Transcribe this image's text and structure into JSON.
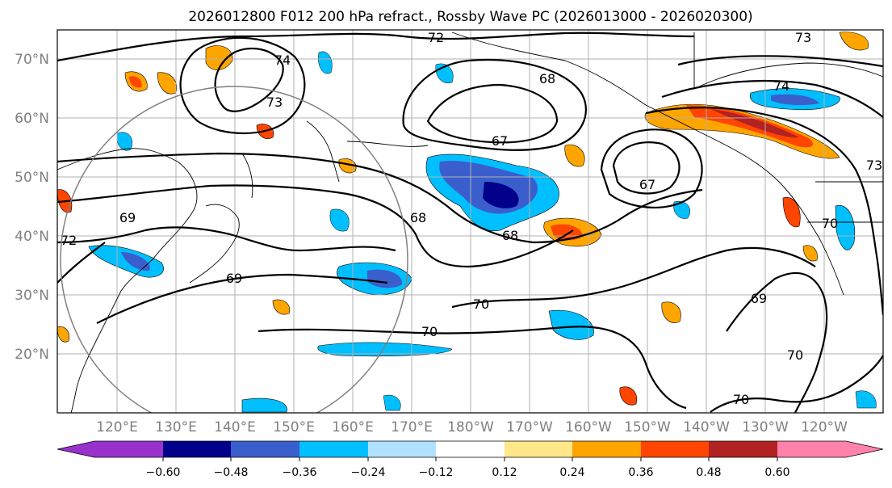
{
  "title": "2026012800 F012 200 hPa refract., Rossby Wave PC (2026013000 - 2026020300)",
  "lat_labels": [
    "70°N",
    "60°N",
    "50°N",
    "40°N",
    "30°N",
    "20°N"
  ],
  "lon_labels": [
    "120°E",
    "130°E",
    "140°E",
    "150°E",
    "160°E",
    "170°E",
    "180°W",
    "170°W",
    "160°W",
    "150°W",
    "140°W",
    "130°W",
    "120°W"
  ],
  "colorbar": {
    "ticks": [
      "−0.60",
      "−0.48",
      "−0.36",
      "−0.24",
      "−0.12",
      "0.12",
      "0.24",
      "0.36",
      "0.48",
      "0.60"
    ],
    "colors": [
      "#9932cc",
      "#00008b",
      "#3a5fcd",
      "#00bfff",
      "#b0e2ff",
      "#ffffff",
      "#ffe78a",
      "#ffa500",
      "#ff4500",
      "#b22222",
      "#ff82ab"
    ]
  },
  "contour_labels": [
    "72",
    "73",
    "74",
    "73",
    "68",
    "67",
    "67",
    "68",
    "68",
    "69",
    "69",
    "70",
    "70",
    "70",
    "70",
    "72",
    "73",
    "74",
    "69",
    "70"
  ]
}
